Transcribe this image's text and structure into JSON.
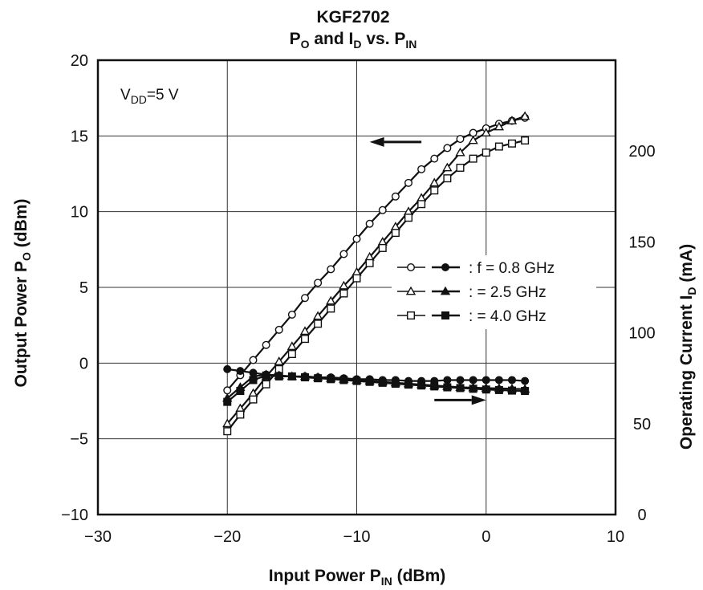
{
  "chart_data": {
    "type": "line",
    "title": "KGF2702",
    "subtitle_parts": {
      "p": "P",
      "p_sub": "O",
      "and": " and I",
      "i_sub": "D",
      "vs": " vs. P",
      "pin_sub": "IN"
    },
    "xlabel_parts": {
      "main": "Input Power  P",
      "sub": "IN",
      "tail": "  (dBm)"
    },
    "ylabel_left_parts": {
      "main": "Output Power  P",
      "sub": "O",
      "tail": "  (dBm)"
    },
    "ylabel_right_parts": {
      "main": "Operating Current  I",
      "sub": "D",
      "tail": "  (mA)"
    },
    "xlim": [
      -30,
      10
    ],
    "ylim_left": [
      -10,
      20
    ],
    "ylim_right": [
      0,
      250
    ],
    "x_ticks": [
      "−30",
      "−20",
      "−10",
      "0",
      "10"
    ],
    "y_left_ticks": [
      "−10",
      "−5",
      "0",
      "5",
      "10",
      "15",
      "20"
    ],
    "y_right_ticks": [
      "0",
      "50",
      "100",
      "150",
      "200"
    ],
    "grid": true,
    "annotation": {
      "v": "V",
      "sub": "DD",
      "value": "=5 V"
    },
    "legend": {
      "placement": "center-right",
      "rows": [
        {
          "label": ": f = 0.8 GHz",
          "marker": "circle"
        },
        {
          "label": ":    = 2.5 GHz",
          "marker": "triangle"
        },
        {
          "label": ":    = 4.0 GHz",
          "marker": "square"
        }
      ]
    },
    "series": [
      {
        "name": "f = 0.8 GHz",
        "quantity": "P_O",
        "axis": "left",
        "marker": "circle",
        "filled": false,
        "x": [
          -20,
          -19,
          -18,
          -17,
          -16,
          -15,
          -14,
          -13,
          -12,
          -11,
          -10,
          -9,
          -8,
          -7,
          -6,
          -5,
          -4,
          -3,
          -2,
          -1,
          0,
          1,
          2,
          3
        ],
        "y": [
          -1.8,
          -0.8,
          0.2,
          1.2,
          2.2,
          3.2,
          4.3,
          5.3,
          6.2,
          7.2,
          8.2,
          9.2,
          10.1,
          11.0,
          11.9,
          12.8,
          13.5,
          14.2,
          14.8,
          15.2,
          15.5,
          15.8,
          16.0,
          16.2
        ]
      },
      {
        "name": "f = 2.5 GHz",
        "quantity": "P_O",
        "axis": "left",
        "marker": "triangle",
        "filled": false,
        "x": [
          -20,
          -19,
          -18,
          -17,
          -16,
          -15,
          -14,
          -13,
          -12,
          -11,
          -10,
          -9,
          -8,
          -7,
          -6,
          -5,
          -4,
          -3,
          -2,
          -1,
          0,
          1,
          2,
          3
        ],
        "y": [
          -4.0,
          -3.0,
          -2.0,
          -0.9,
          0.1,
          1.1,
          2.1,
          3.1,
          4.1,
          5.1,
          6.0,
          7.0,
          8.0,
          9.0,
          10.0,
          10.9,
          11.9,
          12.9,
          13.9,
          14.7,
          15.2,
          15.6,
          16.0,
          16.3
        ]
      },
      {
        "name": "f = 4.0 GHz",
        "quantity": "P_O",
        "axis": "left",
        "marker": "square",
        "filled": false,
        "x": [
          -20,
          -19,
          -18,
          -17,
          -16,
          -15,
          -14,
          -13,
          -12,
          -11,
          -10,
          -9,
          -8,
          -7,
          -6,
          -5,
          -4,
          -3,
          -2,
          -1,
          0,
          1,
          2,
          3
        ],
        "y": [
          -4.5,
          -3.4,
          -2.4,
          -1.4,
          -0.4,
          0.6,
          1.6,
          2.6,
          3.6,
          4.6,
          5.6,
          6.6,
          7.6,
          8.6,
          9.6,
          10.5,
          11.4,
          12.2,
          12.9,
          13.5,
          13.9,
          14.3,
          14.5,
          14.7
        ]
      },
      {
        "name": "f = 0.8 GHz",
        "quantity": "I_D",
        "axis": "right",
        "marker": "circle",
        "filled": true,
        "x": [
          -20,
          -19,
          -18,
          -17,
          -16,
          -15,
          -14,
          -13,
          -12,
          -11,
          -10,
          -9,
          -8,
          -7,
          -6,
          -5,
          -4,
          -3,
          -2,
          -1,
          0,
          1,
          2,
          3
        ],
        "y": [
          80,
          79,
          78,
          77,
          76.5,
          76,
          76,
          75.5,
          75.5,
          75,
          74.5,
          74.5,
          74,
          74,
          73.5,
          73.5,
          73.5,
          74,
          74,
          74,
          74,
          74,
          74,
          73.5
        ]
      },
      {
        "name": "f = 2.5 GHz",
        "quantity": "I_D",
        "axis": "right",
        "marker": "triangle",
        "filled": true,
        "x": [
          -20,
          -19,
          -18,
          -17,
          -16,
          -15,
          -14,
          -13,
          -12,
          -11,
          -10,
          -9,
          -8,
          -7,
          -6,
          -5,
          -4,
          -3,
          -2,
          -1,
          0,
          1,
          2,
          3
        ],
        "y": [
          64,
          70,
          76,
          77,
          76.5,
          76,
          76,
          75.5,
          75,
          74.5,
          74,
          73.5,
          73,
          72.5,
          72,
          71.5,
          71,
          70.5,
          70,
          69.8,
          69.6,
          69.4,
          69.2,
          69
        ]
      },
      {
        "name": "f = 4.0 GHz",
        "quantity": "I_D",
        "axis": "right",
        "marker": "square",
        "filled": true,
        "x": [
          -20,
          -19,
          -18,
          -17,
          -16,
          -15,
          -14,
          -13,
          -12,
          -11,
          -10,
          -9,
          -8,
          -7,
          -6,
          -5,
          -4,
          -3,
          -2,
          -1,
          0,
          1,
          2,
          3
        ],
        "y": [
          62,
          68,
          74,
          76.5,
          76,
          76,
          75.5,
          75,
          74.5,
          74,
          73.5,
          73,
          72.5,
          72,
          71.5,
          71,
          70.5,
          70,
          69.6,
          69.2,
          68.8,
          68.5,
          68.2,
          68
        ]
      }
    ],
    "arrows": [
      {
        "points_to": "left axis",
        "x": [
          -5,
          -9
        ],
        "y_left": 14.6
      },
      {
        "points_to": "right axis",
        "x": [
          -4,
          0
        ],
        "y_right": 63
      }
    ]
  }
}
